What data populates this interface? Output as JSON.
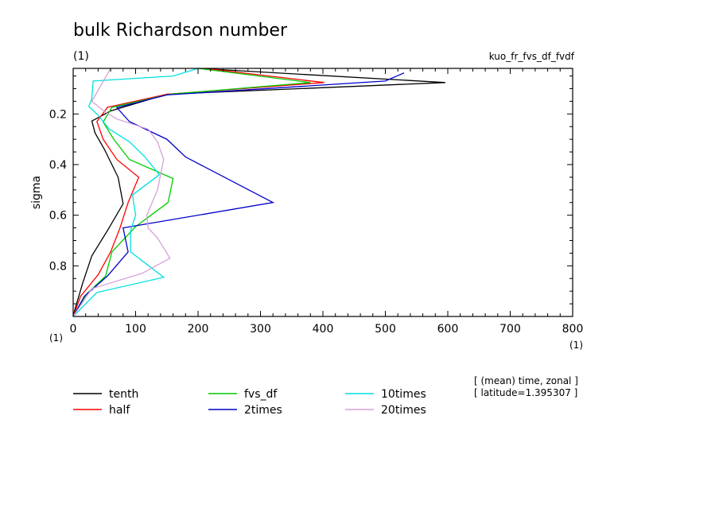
{
  "chart_data": {
    "type": "line",
    "title": "bulk Richardson number",
    "title_unit": "(1)",
    "experiment": "kuo_fr_fvs_df_fvdf",
    "ylabel": "sigma",
    "yunit": "(1)",
    "xunit_left": "(1)",
    "xunit_right": "(1)",
    "xlim": [
      0,
      800
    ],
    "ylim": [
      0.02,
      1.0
    ],
    "y_inverted": true,
    "xticks": [
      0,
      100,
      200,
      300,
      400,
      500,
      600,
      700,
      800
    ],
    "yticks": [
      0.2,
      0.4,
      0.6,
      0.8
    ],
    "info_lines": [
      "[ (mean) time, zonal ]",
      "[ latitude=1.395307 ]"
    ],
    "series": [
      {
        "name": "tenth",
        "color": "#000000",
        "points": [
          [
            200,
            0.02
          ],
          [
            596,
            0.076
          ],
          [
            150,
            0.122
          ],
          [
            60,
            0.188
          ],
          [
            30,
            0.228
          ],
          [
            35,
            0.275
          ],
          [
            50,
            0.34
          ],
          [
            72,
            0.45
          ],
          [
            80,
            0.555
          ],
          [
            55,
            0.66
          ],
          [
            30,
            0.76
          ],
          [
            15,
            0.87
          ],
          [
            3,
            0.97
          ],
          [
            0,
            1.0
          ]
        ]
      },
      {
        "name": "half",
        "color": "#ff0000",
        "points": [
          [
            210,
            0.02
          ],
          [
            402,
            0.076
          ],
          [
            150,
            0.122
          ],
          [
            55,
            0.174
          ],
          [
            38,
            0.23
          ],
          [
            48,
            0.3
          ],
          [
            70,
            0.38
          ],
          [
            105,
            0.45
          ],
          [
            88,
            0.55
          ],
          [
            75,
            0.65
          ],
          [
            60,
            0.745
          ],
          [
            40,
            0.835
          ],
          [
            12,
            0.92
          ],
          [
            0,
            1.0
          ]
        ]
      },
      {
        "name": "fvs_df",
        "color": "#00cc00",
        "points": [
          [
            200,
            0.02
          ],
          [
            380,
            0.076
          ],
          [
            155,
            0.122
          ],
          [
            62,
            0.174
          ],
          [
            48,
            0.232
          ],
          [
            65,
            0.3
          ],
          [
            90,
            0.38
          ],
          [
            160,
            0.455
          ],
          [
            152,
            0.55
          ],
          [
            100,
            0.645
          ],
          [
            62,
            0.745
          ],
          [
            52,
            0.84
          ],
          [
            22,
            0.91
          ],
          [
            0,
            1.0
          ]
        ]
      },
      {
        "name": "2times",
        "color": "#0000cc",
        "points": [
          [
            530,
            0.038
          ],
          [
            500,
            0.07
          ],
          [
            150,
            0.125
          ],
          [
            70,
            0.175
          ],
          [
            90,
            0.23
          ],
          [
            150,
            0.3
          ],
          [
            180,
            0.37
          ],
          [
            320,
            0.55
          ],
          [
            80,
            0.65
          ],
          [
            88,
            0.745
          ],
          [
            55,
            0.84
          ],
          [
            18,
            0.92
          ],
          [
            0,
            1.0
          ]
        ]
      },
      {
        "name": "10times",
        "color": "#00e0e0",
        "points": [
          [
            200,
            0.02
          ],
          [
            160,
            0.05
          ],
          [
            32,
            0.07
          ],
          [
            30,
            0.14
          ],
          [
            25,
            0.17
          ],
          [
            40,
            0.205
          ],
          [
            58,
            0.26
          ],
          [
            90,
            0.31
          ],
          [
            115,
            0.37
          ],
          [
            138,
            0.44
          ],
          [
            95,
            0.52
          ],
          [
            100,
            0.6
          ],
          [
            92,
            0.66
          ],
          [
            92,
            0.745
          ],
          [
            145,
            0.845
          ],
          [
            38,
            0.905
          ],
          [
            0,
            1.0
          ]
        ]
      },
      {
        "name": "20times",
        "color": "#d8a0d8",
        "points": [
          [
            60,
            0.02
          ],
          [
            30,
            0.15
          ],
          [
            50,
            0.19
          ],
          [
            70,
            0.22
          ],
          [
            120,
            0.26
          ],
          [
            135,
            0.31
          ],
          [
            145,
            0.38
          ],
          [
            135,
            0.5
          ],
          [
            118,
            0.6
          ],
          [
            120,
            0.65
          ],
          [
            135,
            0.69
          ],
          [
            155,
            0.77
          ],
          [
            110,
            0.83
          ],
          [
            30,
            0.89
          ],
          [
            0,
            1.0
          ]
        ]
      }
    ],
    "legend": [
      {
        "name": "tenth",
        "color": "#000000"
      },
      {
        "name": "half",
        "color": "#ff0000"
      },
      {
        "name": "fvs_df",
        "color": "#00cc00"
      },
      {
        "name": "2times",
        "color": "#0000cc"
      },
      {
        "name": "10times",
        "color": "#00e0e0"
      },
      {
        "name": "20times",
        "color": "#d8a0d8"
      }
    ]
  }
}
